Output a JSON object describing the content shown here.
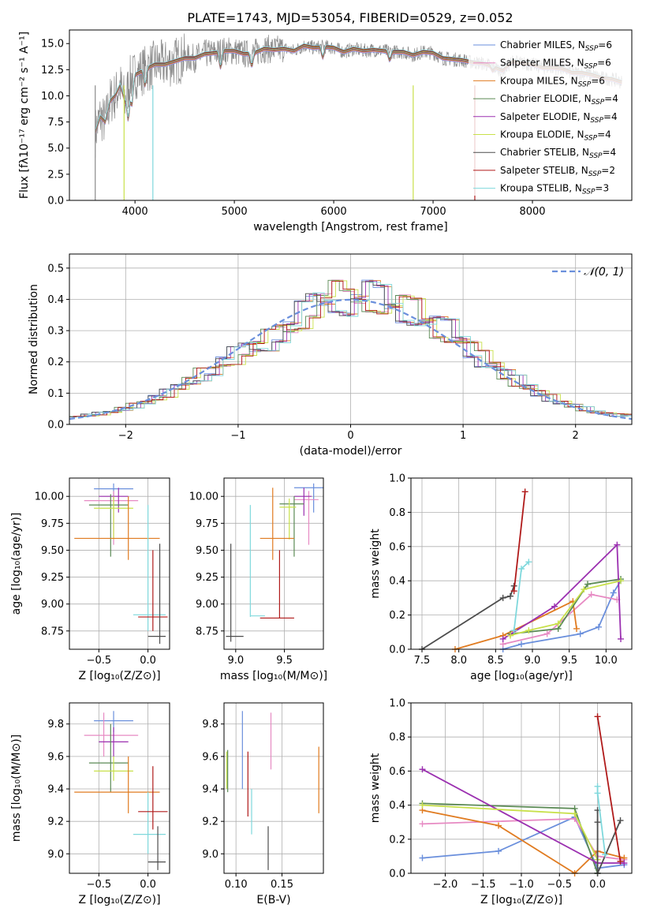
{
  "chart_data": [
    {
      "type": "line",
      "title": "PLATE=1743, MJD=53054, FIBERID=0529, z=0.052",
      "xlabel": "wavelength [Angstrom, rest frame]",
      "ylabel": "Flux [fλ10⁻¹⁷ erg cm⁻² s⁻¹ A⁻¹]",
      "xlim": [
        3340,
        9000
      ],
      "ylim": [
        0,
        16.3
      ],
      "xticks": [
        "4000",
        "5000",
        "6000",
        "7000",
        "8000"
      ],
      "yticks": [
        "0.0",
        "2.5",
        "5.0",
        "7.5",
        "10.0",
        "12.5",
        "15.0"
      ],
      "grid": false,
      "legend_position": "top-right",
      "data_spectrum": {
        "name": "",
        "x": [
          3600,
          3650,
          3700,
          3750,
          3800,
          3850,
          3900,
          3950,
          4000,
          4100,
          4200,
          4300,
          4400,
          4500,
          4600,
          4700,
          4800,
          4900,
          5000,
          5100,
          5200,
          5300,
          5400,
          5500,
          5600,
          5700,
          5800,
          5900,
          6000,
          6100,
          6200,
          6300,
          6400,
          6500,
          6600,
          6700,
          6800,
          6900,
          7000,
          7100,
          7200,
          7300,
          7400,
          7500,
          7600,
          7700,
          7800,
          7900,
          8000,
          8100,
          8200,
          8300,
          8400,
          8500,
          8600,
          8700,
          8800,
          8900
        ],
        "y": [
          6.5,
          8.0,
          7.5,
          9.5,
          10.0,
          11.0,
          9.5,
          11.5,
          12.0,
          12.5,
          13.0,
          13.0,
          13.3,
          13.6,
          13.6,
          14.0,
          14.1,
          14.3,
          14.3,
          14.0,
          14.1,
          14.5,
          14.4,
          14.5,
          14.3,
          14.8,
          14.6,
          14.7,
          14.6,
          14.2,
          14.5,
          14.3,
          14.4,
          14.3,
          14.2,
          14.2,
          13.9,
          14.2,
          14.1,
          13.6,
          13.5,
          13.4,
          13.2,
          13.1,
          12.8,
          12.4,
          13.3,
          13.1,
          13.0,
          12.7,
          12.7,
          12.6,
          12.2,
          12.2,
          12.0,
          11.7,
          11.6,
          11.3
        ]
      },
      "series": [
        {
          "name": "Chabrier MILES, N_SSP=6",
          "color": "#6a8fdc"
        },
        {
          "name": "Salpeter MILES, N_SSP=6",
          "color": "#e78ac3"
        },
        {
          "name": "Kroupa MILES, N_SSP=6",
          "color": "#e07b20"
        },
        {
          "name": "Chabrier ELODIE, N_SSP=4",
          "color": "#5b8a55"
        },
        {
          "name": "Salpeter ELODIE, N_SSP=4",
          "color": "#9b30b0"
        },
        {
          "name": "Kroupa ELODIE, N_SSP=4",
          "color": "#c8e04a"
        },
        {
          "name": "Chabrier STELIB, N_SSP=4",
          "color": "#4d4d4d"
        },
        {
          "name": "Salpeter STELIB, N_SSP=2",
          "color": "#b01a1a"
        },
        {
          "name": "Kroupa STELIB, N_SSP=3",
          "color": "#7fd8dc"
        }
      ]
    },
    {
      "type": "histogram",
      "xlabel": "(data-model)/error",
      "ylabel": "Normed distribution",
      "xlim": [
        -2.5,
        2.5
      ],
      "ylim": [
        0,
        0.545
      ],
      "xticks": [
        "−2",
        "−1",
        "0",
        "1",
        "2"
      ],
      "yticks": [
        "0.0",
        "0.1",
        "0.2",
        "0.3",
        "0.4",
        "0.5"
      ],
      "grid": true,
      "legend_position": "top-right",
      "legend": "𝒩(0, 1)",
      "bins": [
        -2.5,
        -2.4,
        -2.3,
        -2.2,
        -2.1,
        -2.0,
        -1.9,
        -1.8,
        -1.7,
        -1.6,
        -1.5,
        -1.4,
        -1.3,
        -1.2,
        -1.1,
        -1.0,
        -0.9,
        -0.8,
        -0.7,
        -0.6,
        -0.5,
        -0.4,
        -0.3,
        -0.2,
        -0.1,
        0.0,
        0.1,
        0.2,
        0.3,
        0.4,
        0.5,
        0.6,
        0.7,
        0.8,
        0.9,
        1.0,
        1.1,
        1.2,
        1.3,
        1.4,
        1.5,
        1.6,
        1.7,
        1.8,
        1.9,
        2.0,
        2.1,
        2.2,
        2.3,
        2.4,
        2.5
      ],
      "hist_values": [
        0.025,
        0.03,
        0.035,
        0.04,
        0.05,
        0.06,
        0.07,
        0.085,
        0.1,
        0.12,
        0.14,
        0.16,
        0.17,
        0.2,
        0.22,
        0.24,
        0.25,
        0.27,
        0.29,
        0.31,
        0.35,
        0.38,
        0.4,
        0.41,
        0.39,
        0.4,
        0.41,
        0.4,
        0.38,
        0.37,
        0.36,
        0.33,
        0.31,
        0.3,
        0.27,
        0.24,
        0.21,
        0.19,
        0.16,
        0.14,
        0.12,
        0.1,
        0.085,
        0.07,
        0.06,
        0.05,
        0.04,
        0.035,
        0.03,
        0.03
      ]
    },
    {
      "type": "scatter",
      "xlabel": "Z [log₁₀(Z/Z⊙)]",
      "ylabel": "age  [log₁₀(age/yr)]",
      "xlim": [
        -0.8,
        0.22
      ],
      "ylim": [
        8.58,
        10.17
      ],
      "xticks": [
        "−0.5",
        "0.0"
      ],
      "yticks": [
        "8.75",
        "9.00",
        "9.25",
        "9.50",
        "9.75",
        "10.00"
      ],
      "grid": true
    },
    {
      "type": "scatter",
      "xlabel": "mass [log₁₀(M/M⊙)]",
      "ylabel": "",
      "xlim": [
        8.88,
        9.9
      ],
      "ylim": [
        8.58,
        10.17
      ],
      "xticks": [
        "9.0",
        "9.5"
      ],
      "yticks": [
        "8.75",
        "9.00",
        "9.25",
        "9.50",
        "9.75",
        "10.00"
      ],
      "grid": true
    },
    {
      "type": "line",
      "xlabel": "age  [log₁₀(age/yr)]",
      "ylabel": "mass weight",
      "xlim": [
        7.35,
        10.35
      ],
      "ylim": [
        0,
        1
      ],
      "xticks": [
        "7.5",
        "8.0",
        "8.5",
        "9.0",
        "9.5",
        "10.0"
      ],
      "yticks": [
        "0.0",
        "0.2",
        "0.4",
        "0.6",
        "0.8",
        "1.0"
      ],
      "grid": true,
      "series": [
        {
          "color": "#6a8fdc",
          "x": [
            8.6,
            8.85,
            9.65,
            9.9,
            10.1,
            10.2
          ],
          "y": [
            0.0,
            0.03,
            0.09,
            0.13,
            0.33,
            0.4
          ]
        },
        {
          "color": "#e78ac3",
          "x": [
            8.6,
            9.2,
            9.8,
            10.15
          ],
          "y": [
            0.03,
            0.09,
            0.32,
            0.29
          ]
        },
        {
          "color": "#e07b20",
          "x": [
            7.95,
            8.6,
            9.55,
            9.6
          ],
          "y": [
            0.0,
            0.08,
            0.28,
            0.12
          ]
        },
        {
          "color": "#5b8a55",
          "x": [
            8.7,
            9.35,
            9.75,
            10.2
          ],
          "y": [
            0.09,
            0.12,
            0.38,
            0.41
          ]
        },
        {
          "color": "#9b30b0",
          "x": [
            8.6,
            9.3,
            10.15,
            10.2
          ],
          "y": [
            0.06,
            0.25,
            0.61,
            0.06
          ]
        },
        {
          "color": "#c8e04a",
          "x": [
            8.7,
            8.95,
            9.35,
            9.7,
            10.2
          ],
          "y": [
            0.08,
            0.11,
            0.15,
            0.35,
            0.4
          ]
        },
        {
          "color": "#4d4d4d",
          "x": [
            7.5,
            8.6,
            8.7,
            8.75
          ],
          "y": [
            0.0,
            0.3,
            0.31,
            0.37
          ]
        },
        {
          "color": "#b01a1a",
          "x": [
            8.75,
            8.9
          ],
          "y": [
            0.34,
            0.92
          ]
        },
        {
          "color": "#7fd8dc",
          "x": [
            8.75,
            8.85,
            8.95
          ],
          "y": [
            0.11,
            0.47,
            0.51
          ]
        }
      ]
    },
    {
      "type": "scatter",
      "xlabel": "Z [log₁₀(Z/Z⊙)]",
      "ylabel": "mass [log₁₀(M/M⊙)]",
      "xlim": [
        -0.8,
        0.22
      ],
      "ylim": [
        8.88,
        9.93
      ],
      "xticks": [
        "−0.5",
        "0.0"
      ],
      "yticks": [
        "9.0",
        "9.2",
        "9.4",
        "9.6",
        "9.8"
      ],
      "grid": true
    },
    {
      "type": "scatter",
      "xlabel": "E(B-V)",
      "ylabel": "",
      "xlim": [
        0.087,
        0.195
      ],
      "ylim": [
        8.88,
        9.93
      ],
      "xticks": [
        "0.10",
        "0.15"
      ],
      "yticks": [
        "9.0",
        "9.2",
        "9.4",
        "9.6",
        "9.8"
      ],
      "grid": true
    },
    {
      "type": "line",
      "xlabel": "Z [log₁₀(Z/Z⊙)]",
      "ylabel": "mass weight",
      "xlim": [
        -2.45,
        0.45
      ],
      "ylim": [
        0,
        1
      ],
      "xticks": [
        "−2.0",
        "−1.5",
        "−1.0",
        "−0.5",
        "0.0"
      ],
      "yticks": [
        "0.0",
        "0.2",
        "0.4",
        "0.6",
        "0.8",
        "1.0"
      ],
      "grid": true,
      "series": [
        {
          "color": "#6a8fdc",
          "x": [
            -2.3,
            -1.3,
            -0.3,
            0.0,
            0.35
          ],
          "y": [
            0.09,
            0.13,
            0.33,
            0.03,
            0.05
          ]
        },
        {
          "color": "#e78ac3",
          "x": [
            -2.3,
            -0.3,
            0.0,
            0.35
          ],
          "y": [
            0.29,
            0.32,
            0.1,
            0.08
          ]
        },
        {
          "color": "#e07b20",
          "x": [
            -2.3,
            -1.3,
            -0.3,
            0.0,
            0.35
          ],
          "y": [
            0.37,
            0.28,
            0.0,
            0.13,
            0.09
          ]
        },
        {
          "color": "#5b8a55",
          "x": [
            -2.3,
            -0.3,
            0.0
          ],
          "y": [
            0.41,
            0.38,
            0.0
          ]
        },
        {
          "color": "#9b30b0",
          "x": [
            -2.3,
            0.0,
            0.35
          ],
          "y": [
            0.61,
            0.06,
            0.06
          ]
        },
        {
          "color": "#c8e04a",
          "x": [
            -2.3,
            -0.3,
            0.0
          ],
          "y": [
            0.4,
            0.35,
            0.08
          ]
        },
        {
          "color": "#4d4d4d",
          "x": [
            0.0,
            0.0,
            0.0,
            0.3
          ],
          "y": [
            0.37,
            0.3,
            0.0,
            0.31
          ]
        },
        {
          "color": "#b01a1a",
          "x": [
            0.0,
            0.3
          ],
          "y": [
            0.92,
            0.07
          ]
        },
        {
          "color": "#7fd8dc",
          "x": [
            0.0,
            0.0,
            0.1
          ],
          "y": [
            0.51,
            0.47,
            0.11
          ]
        }
      ]
    }
  ],
  "errorbars": {
    "z_age": [
      {
        "color": "#6a8fdc",
        "x": -0.35,
        "y": 10.07,
        "xe": [
          -0.55,
          -0.15
        ],
        "ye": [
          9.97,
          10.12
        ]
      },
      {
        "color": "#e78ac3",
        "x": -0.35,
        "y": 9.96,
        "xe": [
          -0.65,
          -0.1
        ],
        "ye": [
          9.55,
          10.05
        ]
      },
      {
        "color": "#9b30b0",
        "x": -0.3,
        "y": 10.0,
        "xe": [
          -0.5,
          -0.2
        ],
        "ye": [
          9.85,
          10.08
        ]
      },
      {
        "color": "#5b8a55",
        "x": -0.38,
        "y": 9.92,
        "xe": [
          -0.6,
          -0.2
        ],
        "ye": [
          9.44,
          10.02
        ]
      },
      {
        "color": "#c8e04a",
        "x": -0.35,
        "y": 9.89,
        "xe": [
          -0.55,
          -0.15
        ],
        "ye": [
          9.6,
          10.0
        ]
      },
      {
        "color": "#e07b20",
        "x": -0.2,
        "y": 9.61,
        "xe": [
          -0.75,
          0.12
        ],
        "ye": [
          9.41,
          10.0
        ]
      },
      {
        "color": "#7fd8dc",
        "x": 0.0,
        "y": 8.9,
        "xe": [
          -0.15,
          0.18
        ],
        "ye": [
          8.75,
          9.92
        ]
      },
      {
        "color": "#b01a1a",
        "x": 0.05,
        "y": 8.88,
        "xe": [
          -0.1,
          0.2
        ],
        "ye": [
          8.75,
          9.5
        ]
      },
      {
        "color": "#4d4d4d",
        "x": 0.12,
        "y": 8.7,
        "xe": [
          0.0,
          0.18
        ],
        "ye": [
          8.63,
          9.56
        ]
      }
    ],
    "mass_age": [
      {
        "color": "#6a8fdc",
        "x": 9.8,
        "y": 10.08,
        "xe": [
          9.6,
          9.9
        ],
        "ye": [
          9.85,
          10.12
        ]
      },
      {
        "color": "#e78ac3",
        "x": 9.75,
        "y": 9.97,
        "xe": [
          9.6,
          9.85
        ],
        "ye": [
          9.55,
          10.05
        ]
      },
      {
        "color": "#9b30b0",
        "x": 9.7,
        "y": 10.0,
        "xe": [
          9.6,
          9.78
        ],
        "ye": [
          9.82,
          10.08
        ]
      },
      {
        "color": "#5b8a55",
        "x": 9.6,
        "y": 9.93,
        "xe": [
          9.45,
          9.7
        ],
        "ye": [
          9.44,
          10.0
        ]
      },
      {
        "color": "#c8e04a",
        "x": 9.55,
        "y": 9.9,
        "xe": [
          9.45,
          9.62
        ],
        "ye": [
          9.6,
          9.98
        ]
      },
      {
        "color": "#e07b20",
        "x": 9.38,
        "y": 9.61,
        "xe": [
          9.25,
          9.6
        ],
        "ye": [
          9.41,
          10.08
        ]
      },
      {
        "color": "#7fd8dc",
        "x": 9.15,
        "y": 8.89,
        "xe": [
          9.15,
          9.3
        ],
        "ye": [
          8.88,
          9.92
        ]
      },
      {
        "color": "#b01a1a",
        "x": 9.45,
        "y": 8.87,
        "xe": [
          9.25,
          9.6
        ],
        "ye": [
          8.87,
          9.5
        ]
      },
      {
        "color": "#4d4d4d",
        "x": 8.95,
        "y": 8.7,
        "xe": [
          8.9,
          9.08
        ],
        "ye": [
          8.65,
          9.56
        ]
      }
    ],
    "z_mass": [
      {
        "color": "#6a8fdc",
        "x": -0.35,
        "y": 9.82,
        "xe": [
          -0.55,
          -0.15
        ],
        "ye": [
          9.75,
          9.88
        ]
      },
      {
        "color": "#e78ac3",
        "x": -0.45,
        "y": 9.73,
        "xe": [
          -0.65,
          -0.1
        ],
        "ye": [
          9.6,
          9.87
        ]
      },
      {
        "color": "#9b30b0",
        "x": -0.35,
        "y": 9.69,
        "xe": [
          -0.5,
          -0.2
        ],
        "ye": [
          9.6,
          9.78
        ]
      },
      {
        "color": "#5b8a55",
        "x": -0.38,
        "y": 9.56,
        "xe": [
          -0.6,
          -0.2
        ],
        "ye": [
          9.38,
          9.8
        ]
      },
      {
        "color": "#c8e04a",
        "x": -0.35,
        "y": 9.51,
        "xe": [
          -0.55,
          -0.15
        ],
        "ye": [
          9.45,
          9.6
        ]
      },
      {
        "color": "#e07b20",
        "x": -0.2,
        "y": 9.38,
        "xe": [
          -0.75,
          0.12
        ],
        "ye": [
          9.25,
          9.6
        ]
      },
      {
        "color": "#7fd8dc",
        "x": 0.0,
        "y": 9.12,
        "xe": [
          -0.15,
          0.18
        ],
        "ye": [
          9.0,
          9.38
        ]
      },
      {
        "color": "#b01a1a",
        "x": 0.05,
        "y": 9.26,
        "xe": [
          -0.1,
          0.2
        ],
        "ye": [
          9.15,
          9.54
        ]
      },
      {
        "color": "#4d4d4d",
        "x": 0.1,
        "y": 8.95,
        "xe": [
          0.0,
          0.18
        ],
        "ye": [
          8.9,
          9.17
        ]
      }
    ],
    "ebv_mass": [
      {
        "color": "#c8e04a",
        "x": 0.09,
        "ye": [
          9.4,
          9.63
        ]
      },
      {
        "color": "#5b8a55",
        "x": 0.091,
        "ye": [
          9.38,
          9.64
        ]
      },
      {
        "color": "#6a8fdc",
        "x": 0.107,
        "ye": [
          9.4,
          9.88
        ]
      },
      {
        "color": "#b01a1a",
        "x": 0.113,
        "ye": [
          9.23,
          9.63
        ]
      },
      {
        "color": "#7fd8dc",
        "x": 0.117,
        "ye": [
          9.12,
          9.4
        ]
      },
      {
        "color": "#4d4d4d",
        "x": 0.135,
        "ye": [
          8.9,
          9.17
        ]
      },
      {
        "color": "#e78ac3",
        "x": 0.138,
        "ye": [
          9.52,
          9.87
        ]
      },
      {
        "color": "#e07b20",
        "x": 0.19,
        "ye": [
          9.25,
          9.66
        ]
      }
    ]
  }
}
